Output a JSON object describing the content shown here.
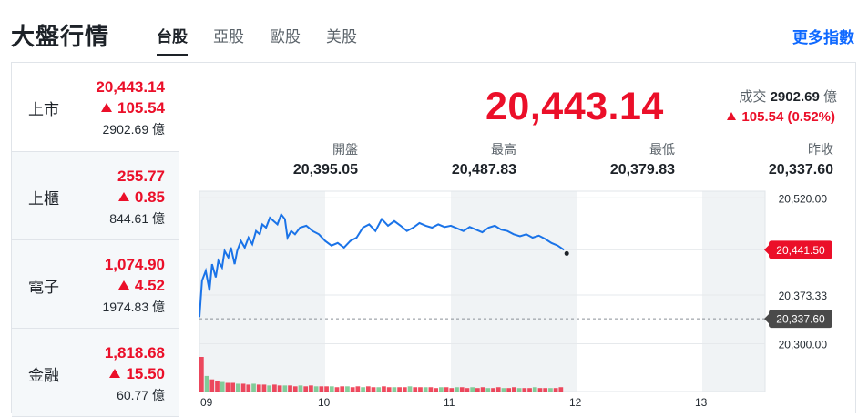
{
  "header": {
    "title": "大盤行情",
    "tabs": [
      {
        "label": "台股",
        "active": true
      },
      {
        "label": "亞股",
        "active": false
      },
      {
        "label": "歐股",
        "active": false
      },
      {
        "label": "美股",
        "active": false
      }
    ],
    "more_label": "更多指數"
  },
  "sidebar": {
    "items": [
      {
        "name": "上市",
        "price": "20,443.14",
        "change": "105.54",
        "volume": "2902.69 億"
      },
      {
        "name": "上櫃",
        "price": "255.77",
        "change": "0.85",
        "volume": "844.61 億"
      },
      {
        "name": "電子",
        "price": "1,074.90",
        "change": "4.52",
        "volume": "1974.83 億"
      },
      {
        "name": "金融",
        "price": "1,818.68",
        "change": "15.50",
        "volume": "60.77 億"
      }
    ]
  },
  "quote": {
    "price": "20,443.14",
    "volume_label": "成交",
    "volume_value": "2902.69",
    "volume_unit": "億",
    "change": "105.54 (0.52%)"
  },
  "stats": [
    {
      "label": "開盤",
      "value": "20,395.05"
    },
    {
      "label": "最高",
      "value": "20,487.83"
    },
    {
      "label": "最低",
      "value": "20,379.83"
    },
    {
      "label": "昨收",
      "value": "20,337.60"
    }
  ],
  "colors": {
    "up": "#eb0f29",
    "line": "#1a73e8",
    "accent": "#0f69ff",
    "prev_close_tag": "#4a4a4a"
  },
  "chart_data": {
    "type": "line",
    "x_ticks": [
      "09",
      "10",
      "11",
      "12",
      "13"
    ],
    "x_range": [
      9,
      13.5
    ],
    "y_ticks": [
      "20,520.00",
      "20,373.33",
      "20,300.00"
    ],
    "ylim": [
      20280,
      20530
    ],
    "current_label": "20,441.50",
    "prev_close_label": "20,337.60",
    "current_value": 20441.5,
    "prev_close_value": 20337.6,
    "series": [
      {
        "x": [
          9.0,
          9.02,
          9.05,
          9.08,
          9.1,
          9.13,
          9.15,
          9.18,
          9.2,
          9.23,
          9.25,
          9.28,
          9.3,
          9.33,
          9.36,
          9.39,
          9.42,
          9.45,
          9.48,
          9.5,
          9.53,
          9.56,
          9.59,
          9.62,
          9.65,
          9.68,
          9.7,
          9.73,
          9.76,
          9.8,
          9.85,
          9.9,
          9.95,
          10.0,
          10.05,
          10.1,
          10.15,
          10.2,
          10.25,
          10.3,
          10.35,
          10.4,
          10.45,
          10.5,
          10.55,
          10.6,
          10.65,
          10.7,
          10.75,
          10.8,
          10.85,
          10.9,
          10.95,
          11.0,
          11.05,
          11.1,
          11.15,
          11.2,
          11.25,
          11.3,
          11.35,
          11.4,
          11.45,
          11.5,
          11.55,
          11.6,
          11.65,
          11.7,
          11.75,
          11.8,
          11.85,
          11.9
        ],
        "y": [
          20340,
          20395,
          20410,
          20380,
          20420,
          20400,
          20425,
          20415,
          20440,
          20430,
          20445,
          20420,
          20440,
          20455,
          20445,
          20460,
          20450,
          20470,
          20465,
          20480,
          20475,
          20490,
          20485,
          20480,
          20495,
          20488,
          20460,
          20470,
          20465,
          20475,
          20478,
          20470,
          20465,
          20455,
          20448,
          20452,
          20445,
          20455,
          20460,
          20475,
          20480,
          20470,
          20488,
          20478,
          20485,
          20478,
          20470,
          20475,
          20482,
          20478,
          20475,
          20480,
          20476,
          20478,
          20474,
          20470,
          20476,
          20472,
          20468,
          20475,
          20478,
          20472,
          20470,
          20465,
          20462,
          20465,
          20460,
          20463,
          20458,
          20452,
          20448,
          20441.5
        ]
      }
    ],
    "volume_bars": [
      40,
      18,
      14,
      12,
      11,
      10,
      10,
      9,
      9,
      8,
      9,
      8,
      8,
      7,
      8,
      7,
      7,
      7,
      6,
      7,
      6,
      7,
      6,
      6,
      6,
      6,
      5,
      6,
      6,
      5,
      6,
      5,
      6,
      5,
      5,
      6,
      5,
      5,
      5,
      5,
      6,
      5,
      5,
      5,
      5,
      4,
      5,
      5,
      4,
      5,
      5,
      4,
      5,
      4,
      5,
      4,
      4,
      5,
      4,
      4,
      5,
      4,
      4,
      4,
      5,
      4,
      4,
      4,
      4,
      5
    ]
  }
}
